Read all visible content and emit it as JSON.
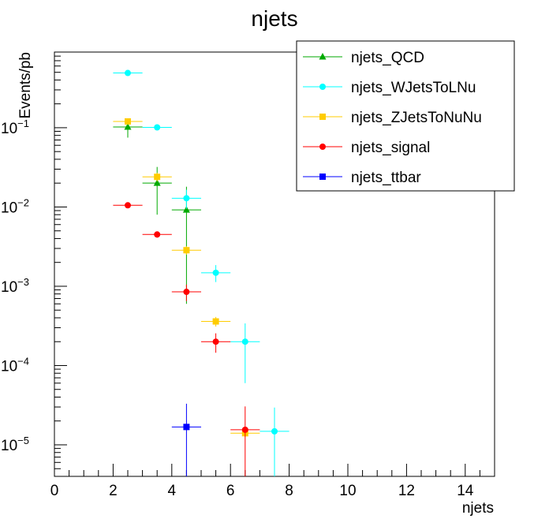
{
  "chart_data": {
    "type": "scatter",
    "title": "njets",
    "xlabel": "njets",
    "ylabel": "Events/pb",
    "xlim": [
      0,
      15
    ],
    "ylim": [
      4e-06,
      0.9
    ],
    "yscale": "log",
    "x_ticks": [
      "0",
      "2",
      "4",
      "6",
      "8",
      "10",
      "12",
      "14"
    ],
    "y_ticks": [
      {
        "mantissa": "10",
        "exponent": "−5"
      },
      {
        "mantissa": "10",
        "exponent": "−4"
      },
      {
        "mantissa": "10",
        "exponent": "−3"
      },
      {
        "mantissa": "10",
        "exponent": "−2"
      },
      {
        "mantissa": "10",
        "exponent": "−1"
      }
    ],
    "grid": false,
    "legend_position": "top-right",
    "series": [
      {
        "name": "njets_QCD",
        "color": "#00aa00",
        "marker": "triangle",
        "points": [
          {
            "x": 2.5,
            "y": 0.102,
            "ylo": 0.075,
            "yhi": 0.13
          },
          {
            "x": 3.5,
            "y": 0.02,
            "ylo": 0.008,
            "yhi": 0.032
          },
          {
            "x": 4.5,
            "y": 0.0092,
            "ylo": 0.0006,
            "yhi": 0.018
          }
        ]
      },
      {
        "name": "njets_WJetsToLNu",
        "color": "#00ffff",
        "marker": "circle",
        "points": [
          {
            "x": 2.5,
            "y": 0.49,
            "ylo": 0.47,
            "yhi": 0.51
          },
          {
            "x": 3.5,
            "y": 0.101,
            "ylo": 0.098,
            "yhi": 0.104
          },
          {
            "x": 4.5,
            "y": 0.0129,
            "ylo": 0.0095,
            "yhi": 0.0165
          },
          {
            "x": 5.5,
            "y": 0.00148,
            "ylo": 0.00113,
            "yhi": 0.00185
          },
          {
            "x": 6.5,
            "y": 0.0002,
            "ylo": 6e-05,
            "yhi": 0.00034
          },
          {
            "x": 7.5,
            "y": 1.48e-05,
            "ylo": 3.5e-06,
            "yhi": 2.95e-05
          }
        ]
      },
      {
        "name": "njets_ZJetsToNuNu",
        "color": "#ffcc00",
        "marker": "square",
        "points": [
          {
            "x": 2.5,
            "y": 0.12,
            "ylo": 0.115,
            "yhi": 0.125
          },
          {
            "x": 3.5,
            "y": 0.024,
            "ylo": 0.021,
            "yhi": 0.027
          },
          {
            "x": 4.5,
            "y": 0.00285,
            "ylo": 0.0025,
            "yhi": 0.0032
          },
          {
            "x": 5.5,
            "y": 0.00036,
            "ylo": 0.00031,
            "yhi": 0.00041
          },
          {
            "x": 6.5,
            "y": 1.4e-05,
            "ylo": 1.25e-05,
            "yhi": 1.55e-05
          }
        ]
      },
      {
        "name": "njets_signal",
        "color": "#ff0000",
        "marker": "circle",
        "points": [
          {
            "x": 2.5,
            "y": 0.0105,
            "ylo": 0.0099,
            "yhi": 0.0111
          },
          {
            "x": 3.5,
            "y": 0.0045,
            "ylo": 0.0041,
            "yhi": 0.0049
          },
          {
            "x": 4.5,
            "y": 0.00085,
            "ylo": 0.00065,
            "yhi": 0.00105
          },
          {
            "x": 5.5,
            "y": 0.0002,
            "ylo": 0.000145,
            "yhi": 0.000255
          },
          {
            "x": 6.5,
            "y": 1.55e-05,
            "ylo": 1e-07,
            "yhi": 3.05e-05
          }
        ]
      },
      {
        "name": "njets_ttbar",
        "color": "#0000ff",
        "marker": "square",
        "points": [
          {
            "x": 4.5,
            "y": 1.68e-05,
            "ylo": 1e-07,
            "yhi": 3.3e-05
          }
        ]
      }
    ]
  }
}
